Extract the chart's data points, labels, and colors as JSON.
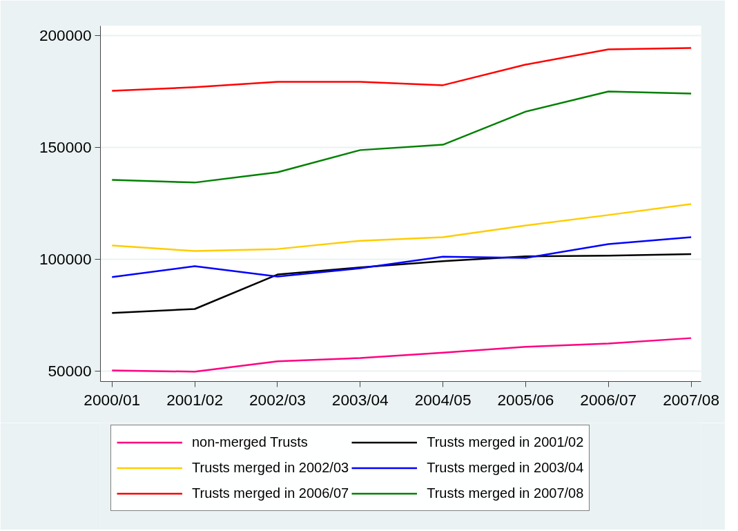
{
  "chart_data": {
    "type": "line",
    "categories": [
      "2000/01",
      "2001/02",
      "2002/03",
      "2003/04",
      "2004/05",
      "2005/06",
      "2006/07",
      "2007/08"
    ],
    "ylim": [
      45400,
      204300
    ],
    "yticks": [
      50000,
      100000,
      150000,
      200000
    ],
    "grid": "y",
    "legend": "bottom",
    "line_style": "solid",
    "marker": "none",
    "series": [
      {
        "name": "non-merged Trusts",
        "color": "#ff0080",
        "values": [
          50300,
          49800,
          54400,
          55900,
          58300,
          60900,
          62400,
          64800
        ]
      },
      {
        "name": "Trusts merged in 2001/02",
        "color": "#000000",
        "values": [
          76000,
          77800,
          93200,
          96400,
          99200,
          101300,
          101600,
          102300
        ]
      },
      {
        "name": "Trusts merged in 2002/03",
        "color": "#ffcc00",
        "values": [
          106200,
          103700,
          104600,
          108300,
          109900,
          115100,
          119800,
          124700
        ]
      },
      {
        "name": "Trusts merged in 2003/04",
        "color": "#0000ff",
        "values": [
          92100,
          96900,
          92300,
          96000,
          101200,
          100600,
          106800,
          109900
        ]
      },
      {
        "name": "Trusts merged in 2006/07",
        "color": "#ff0000",
        "values": [
          175300,
          176900,
          179300,
          179300,
          177800,
          187000,
          193800,
          194400
        ]
      },
      {
        "name": "Trusts merged in 2007/08",
        "color": "#008000",
        "values": [
          135500,
          134300,
          138900,
          148800,
          151200,
          166000,
          175000,
          174100
        ]
      }
    ]
  }
}
